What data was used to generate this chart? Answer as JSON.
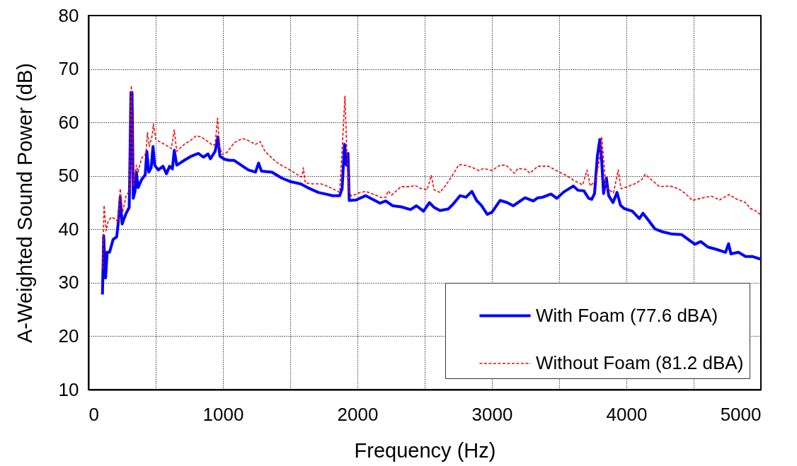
{
  "chart_data": {
    "type": "line",
    "xlabel": "Frequency (Hz)",
    "ylabel": "A-Weighted Sound Power (dB)",
    "xlim": [
      0,
      5000
    ],
    "xticks": [
      0,
      {
        "value": 500,
        "label": null
      },
      1000,
      {
        "value": 1500,
        "label": null
      },
      2000,
      {
        "value": 2500,
        "label": null
      },
      3000,
      {
        "value": 3500,
        "label": null
      },
      4000,
      {
        "value": 4500,
        "label": null
      },
      5000
    ],
    "ylim": [
      10,
      80
    ],
    "yticks": [
      10,
      20,
      30,
      40,
      50,
      60,
      70,
      80
    ],
    "grid": true,
    "legend": "bottom right",
    "series": [
      {
        "name": "With Foam (77.6 dBA)",
        "color": "#0000ff",
        "line_style": "solid",
        "x": [
          104,
          113,
          127,
          139,
          157,
          183,
          210,
          222,
          236,
          250,
          263,
          280,
          303,
          316,
          324,
          333,
          346,
          356,
          369,
          395,
          422,
          434,
          448,
          466,
          480,
          492,
          519,
          554,
          580,
          603,
          624,
          638,
          656,
          712,
          765,
          818,
          854,
          889,
          907,
          942,
          963,
          977,
          1012,
          1048,
          1083,
          1136,
          1189,
          1242,
          1265,
          1286,
          1365,
          1436,
          1506,
          1577,
          1630,
          1709,
          1763,
          1816,
          1868,
          1886,
          1904,
          1918,
          1930,
          1939,
          1991,
          2061,
          2114,
          2167,
          2211,
          2263,
          2325,
          2395,
          2439,
          2491,
          2535,
          2570,
          2614,
          2675,
          2711,
          2763,
          2807,
          2851,
          2886,
          2921,
          2965,
          3000,
          3061,
          3114,
          3158,
          3193,
          3246,
          3307,
          3342,
          3377,
          3439,
          3482,
          3535,
          3605,
          3640,
          3684,
          3719,
          3742,
          3763,
          3784,
          3802,
          3816,
          3830,
          3851,
          3868,
          3900,
          3930,
          3956,
          3982,
          4044,
          4096,
          4123,
          4167,
          4211,
          4272,
          4342,
          4412,
          4465,
          4509,
          4553,
          4605,
          4675,
          4737,
          4760,
          4777,
          4833,
          4886,
          4939,
          5000
        ],
        "values": [
          27.8,
          38.8,
          30.9,
          35.7,
          35.7,
          38.1,
          38.6,
          41.4,
          46.0,
          41.0,
          41.9,
          43.0,
          44.1,
          65.6,
          65.6,
          45.8,
          47.1,
          50.7,
          47.8,
          49.3,
          50.2,
          54.6,
          50.7,
          51.5,
          55.5,
          52.0,
          51.1,
          51.8,
          50.4,
          51.8,
          51.3,
          54.8,
          52.0,
          52.9,
          53.7,
          54.2,
          53.5,
          54.1,
          53.2,
          54.6,
          57.3,
          53.7,
          53.1,
          52.9,
          52.9,
          52.0,
          51.1,
          50.7,
          52.4,
          50.9,
          50.7,
          49.6,
          48.9,
          48.5,
          47.8,
          46.9,
          46.6,
          46.3,
          46.3,
          47.6,
          55.9,
          52.0,
          54.2,
          45.4,
          45.5,
          46.3,
          45.6,
          44.9,
          45.3,
          44.4,
          44.2,
          43.7,
          44.4,
          43.4,
          45.0,
          44.1,
          43.5,
          43.8,
          44.7,
          46.3,
          46.0,
          47.1,
          45.4,
          44.5,
          42.8,
          43.2,
          45.4,
          45.0,
          44.4,
          45.0,
          45.9,
          45.3,
          45.9,
          46.0,
          46.6,
          45.8,
          47.0,
          48.1,
          47.3,
          47.2,
          45.8,
          45.6,
          46.7,
          53.7,
          56.8,
          52.9,
          46.7,
          49.6,
          46.3,
          45.0,
          46.9,
          44.5,
          43.9,
          43.4,
          42.0,
          43.0,
          41.6,
          40.1,
          39.5,
          39.1,
          39.0,
          38.0,
          37.2,
          37.7,
          36.7,
          36.2,
          35.7,
          37.3,
          35.4,
          35.7,
          34.9,
          34.9,
          34.4
        ]
      },
      {
        "name": "Without Foam (81.2 dBA)",
        "color": "#ff0000",
        "line_style": "dashed",
        "x": [
          104,
          116,
          131,
          145,
          169,
          201,
          219,
          236,
          254,
          280,
          303,
          319,
          333,
          356,
          369,
          395,
          427,
          439,
          452,
          475,
          483,
          501,
          536,
          580,
          616,
          638,
          656,
          712,
          757,
          801,
          836,
          889,
          924,
          942,
          960,
          974,
          995,
          1030,
          1083,
          1145,
          1189,
          1242,
          1277,
          1312,
          1365,
          1418,
          1471,
          1524,
          1568,
          1586,
          1598,
          1612,
          1665,
          1728,
          1763,
          1816,
          1868,
          1895,
          1907,
          1921,
          1939,
          1956,
          2009,
          2061,
          2114,
          2184,
          2211,
          2228,
          2254,
          2325,
          2395,
          2430,
          2465,
          2518,
          2549,
          2570,
          2614,
          2658,
          2702,
          2754,
          2798,
          2851,
          2904,
          2939,
          3000,
          3061,
          3105,
          3167,
          3193,
          3254,
          3281,
          3342,
          3421,
          3500,
          3553,
          3605,
          3675,
          3707,
          3732,
          3772,
          3798,
          3816,
          3833,
          3847,
          3904,
          3939,
          3960,
          4000,
          4061,
          4114,
          4140,
          4184,
          4246,
          4325,
          4386,
          4439,
          4491,
          4553,
          4632,
          4693,
          4763,
          4816,
          4886,
          4921,
          4965,
          5000
        ],
        "values": [
          32.6,
          44.5,
          39.7,
          41.4,
          42.3,
          41.9,
          41.4,
          47.6,
          43.2,
          46.3,
          47.1,
          66.9,
          48.0,
          52.0,
          50.7,
          53.3,
          54.2,
          58.1,
          55.5,
          57.7,
          59.7,
          56.8,
          56.3,
          55.7,
          55.1,
          58.6,
          54.6,
          55.9,
          56.6,
          57.5,
          57.3,
          56.4,
          55.7,
          55.9,
          60.8,
          55.5,
          54.0,
          54.4,
          56.2,
          57.0,
          56.6,
          55.9,
          56.4,
          54.6,
          53.3,
          52.2,
          51.5,
          50.7,
          50.0,
          49.8,
          51.5,
          48.7,
          48.5,
          48.5,
          48.2,
          47.6,
          46.9,
          59.1,
          64.9,
          54.6,
          46.8,
          46.2,
          46.8,
          47.1,
          46.6,
          45.9,
          46.0,
          47.2,
          46.4,
          48.0,
          48.0,
          48.2,
          47.7,
          47.4,
          50.1,
          47.4,
          46.9,
          48.3,
          49.9,
          52.1,
          52.0,
          51.6,
          51.0,
          51.4,
          51.0,
          52.0,
          52.0,
          50.5,
          51.4,
          51.2,
          50.5,
          51.8,
          51.8,
          50.7,
          50.1,
          49.2,
          48.3,
          51.1,
          48.1,
          49.3,
          52.9,
          57.3,
          52.4,
          47.9,
          46.8,
          51.1,
          47.6,
          47.9,
          48.5,
          49.3,
          50.3,
          49.3,
          48.0,
          48.1,
          47.6,
          46.7,
          45.4,
          45.8,
          46.2,
          45.5,
          46.5,
          45.7,
          45.0,
          43.9,
          43.4,
          42.7
        ]
      }
    ]
  }
}
